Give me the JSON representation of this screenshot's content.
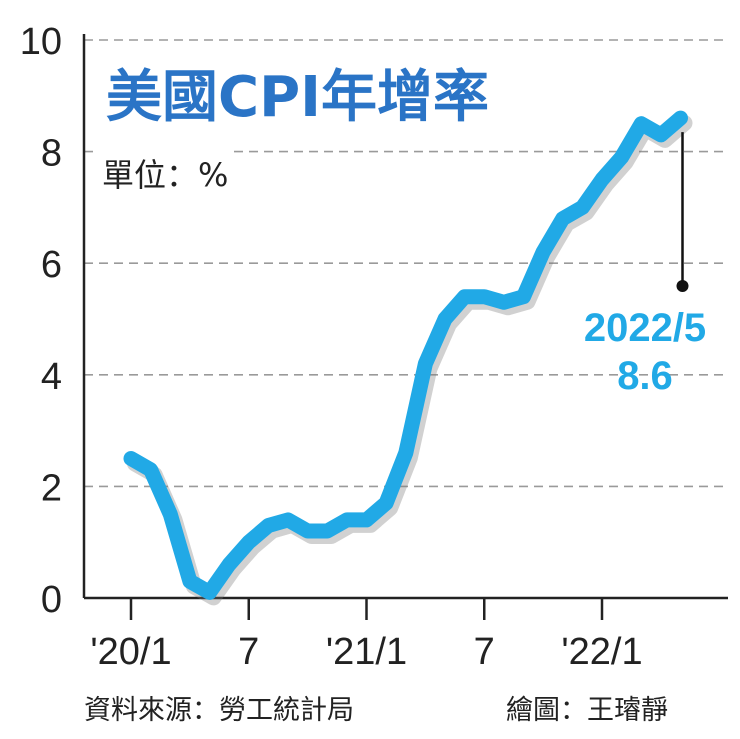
{
  "title": "美國CPI年增率",
  "unit_label": "單位：%",
  "callout": {
    "date": "2022/5",
    "value": "8.6"
  },
  "footer": {
    "source": "資料來源：勞工統計局",
    "credit": "繪圖：王璿靜"
  },
  "colors": {
    "line": "#21a9e6",
    "title": "#2a74c6",
    "grid": "#9a9a9a",
    "axis": "#222222"
  },
  "chart_data": {
    "type": "line",
    "title": "美國CPI年增率",
    "ylabel": "單位：%",
    "ylim": [
      0,
      10
    ],
    "yticks": [
      "0",
      "2",
      "4",
      "6",
      "8",
      "10"
    ],
    "xlim": [
      0,
      28
    ],
    "xticks": [
      {
        "label": "'20/1",
        "at": 0
      },
      {
        "label": "7",
        "at": 6
      },
      {
        "label": "'21/1",
        "at": 12
      },
      {
        "label": "7",
        "at": 18
      },
      {
        "label": "'22/1",
        "at": 24
      }
    ],
    "grid": true,
    "series": [
      {
        "x": [
          0,
          1,
          2,
          3,
          4,
          5,
          6,
          7,
          8,
          9,
          10,
          11,
          12,
          13,
          14,
          15,
          16,
          17,
          18,
          19,
          20,
          21,
          22,
          23,
          24,
          25,
          26,
          27,
          28
        ],
        "values": [
          2.5,
          2.3,
          1.5,
          0.3,
          0.1,
          0.6,
          1.0,
          1.3,
          1.4,
          1.2,
          1.2,
          1.4,
          1.4,
          1.7,
          2.6,
          4.2,
          5.0,
          5.4,
          5.4,
          5.3,
          5.4,
          6.2,
          6.8,
          7.0,
          7.5,
          7.9,
          8.5,
          8.3,
          8.6
        ]
      }
    ]
  }
}
